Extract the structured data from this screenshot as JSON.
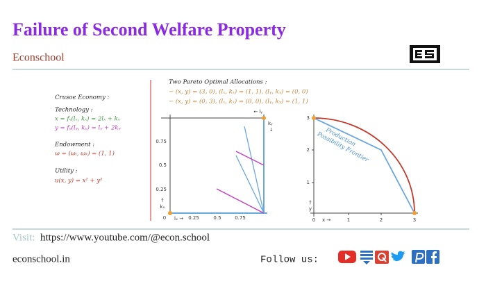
{
  "header": {
    "title": "Failure of Second Welfare Property",
    "subtitle": "Econschool"
  },
  "economy": {
    "heading": "Crusoe Economy :",
    "technology_label": "Technology :",
    "technology": [
      "x = fₓ(lₓ, kₓ)  =  2lₓ + kₓ",
      "y  =  fᵧ(lᵧ, kᵧ)  =  lᵧ + 2kᵧ"
    ],
    "endowment_label": "Endowment :",
    "endowment": "ω = (ωₗ, ωₖ) = (1, 1)",
    "utility_label": "Utility :",
    "utility": "u(x, y) = x² + y²"
  },
  "pareto": {
    "title": "Two Pareto Optimal Allocations :",
    "lines": [
      "− (x, y) = (3, 0),  (lₓ, kₓ) = (1, 1),  (lᵧ, kᵧ) = (0, 0)",
      "− (x, y) = (0, 3),  (lₓ, kₓ) = (0, 0),  (lᵧ, kᵧ) = (1, 1)"
    ]
  },
  "edgeworth": {
    "xticks": [
      "0",
      "0.25",
      "0.5",
      "0.75"
    ],
    "yticks": [
      "0.25",
      "0.5",
      "0.75"
    ],
    "x_label": "lₓ →",
    "y_label": "kₓ",
    "y_arrow": "↑",
    "top_label": "← lᵧ",
    "right_label": "kᵧ",
    "right_arrow": "↓"
  },
  "ppf": {
    "xticks": [
      "0",
      "1",
      "2",
      "3"
    ],
    "yticks": [
      "1",
      "2",
      "3"
    ],
    "x_label": "x →",
    "y_label": "y",
    "y_arrow": "↑",
    "curve_label": [
      "Production",
      "Possibility Frontier"
    ]
  },
  "footer": {
    "visit_label": "Visit:",
    "url": "https://www.youtube.com/@econ.school",
    "site": "econschool.in",
    "follow": "Follow us:"
  }
}
